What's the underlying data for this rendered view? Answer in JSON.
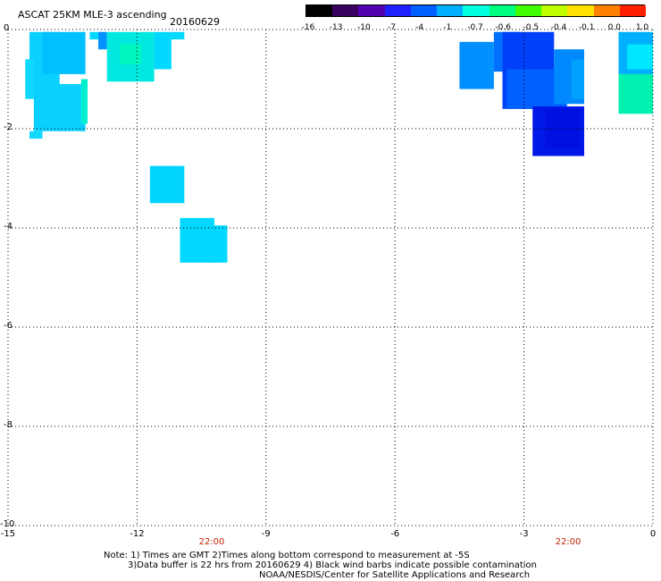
{
  "header": {
    "title": "ASCAT 25KM MLE-3 ascending",
    "date": "20160629"
  },
  "colorbar": {
    "labels": [
      "-16",
      "-13",
      "-10",
      "-7",
      "-4",
      "-1",
      "-0.7",
      "-0.6",
      "-0.5",
      "-0.4",
      "-0.1",
      "0.0",
      "1.0"
    ],
    "colors": [
      "#000000",
      "#3a0060",
      "#5000b0",
      "#2020ff",
      "#0060ff",
      "#00b0ff",
      "#00ffe0",
      "#00ff80",
      "#40ff00",
      "#c0ff00",
      "#ffe000",
      "#ff8000",
      "#ff2000"
    ]
  },
  "axes": {
    "x_ticks": [
      "-15",
      "-12",
      "-9",
      "-6",
      "-3",
      "0"
    ],
    "y_ticks": [
      "0",
      "-2",
      "-4",
      "-6",
      "-8",
      "-10"
    ],
    "time_labels": [
      "22:00",
      "22:00"
    ]
  },
  "map_data": {
    "lon_range": [
      -15,
      0
    ],
    "lat_range": [
      -10,
      0
    ],
    "gridlines": true,
    "patches": [
      {
        "lon": [
          -14.5,
          -13.8
        ],
        "lat": [
          -1.3,
          -0.05
        ],
        "color": "#0ad0ff"
      },
      {
        "lon": [
          -14.6,
          -14.4
        ],
        "lat": [
          -0.6,
          -1.4
        ],
        "color": "#11d8ff"
      },
      {
        "lon": [
          -14.4,
          -13.2
        ],
        "lat": [
          -1.1,
          -2.05
        ],
        "color": "#0ad0ff"
      },
      {
        "lon": [
          -14.5,
          -14.2
        ],
        "lat": [
          -2.05,
          -2.2
        ],
        "color": "#11d8ff"
      },
      {
        "lon": [
          -14.2,
          -13.2
        ],
        "lat": [
          -0.05,
          -0.9
        ],
        "color": "#00c0ff"
      },
      {
        "lon": [
          -13.3,
          -13.15
        ],
        "lat": [
          -1.0,
          -1.9
        ],
        "color": "#00f0d0"
      },
      {
        "lon": [
          -13.1,
          -12.9
        ],
        "lat": [
          -0.05,
          -0.2
        ],
        "color": "#00d8ff"
      },
      {
        "lon": [
          -12.9,
          -12.7
        ],
        "lat": [
          -0.05,
          -0.4
        ],
        "color": "#0090ff"
      },
      {
        "lon": [
          -12.7,
          -11.6
        ],
        "lat": [
          -0.05,
          -1.05
        ],
        "color": "#00e8e0"
      },
      {
        "lon": [
          -12.4,
          -11.9
        ],
        "lat": [
          -0.3,
          -0.7
        ],
        "color": "#00f8c0"
      },
      {
        "lon": [
          -11.6,
          -11.2
        ],
        "lat": [
          -0.05,
          -0.8
        ],
        "color": "#00d8ff"
      },
      {
        "lon": [
          -11.2,
          -10.9
        ],
        "lat": [
          -0.05,
          -0.2
        ],
        "color": "#00d8ff"
      },
      {
        "lon": [
          -11.7,
          -10.9
        ],
        "lat": [
          -2.75,
          -3.5
        ],
        "color": "#00d4ff"
      },
      {
        "lon": [
          -11.0,
          -10.2
        ],
        "lat": [
          -3.8,
          -4.7
        ],
        "color": "#00d8ff"
      },
      {
        "lon": [
          -10.3,
          -9.9
        ],
        "lat": [
          -3.95,
          -4.7
        ],
        "color": "#00d8ff"
      },
      {
        "lon": [
          -4.5,
          -3.7
        ],
        "lat": [
          -0.25,
          -1.2
        ],
        "color": "#0090ff"
      },
      {
        "lon": [
          -3.7,
          -3.1
        ],
        "lat": [
          -0.05,
          -0.85
        ],
        "color": "#0070ff"
      },
      {
        "lon": [
          -3.5,
          -2.3
        ],
        "lat": [
          -0.05,
          -1.6
        ],
        "color": "#0040f8"
      },
      {
        "lon": [
          -3.4,
          -2.0
        ],
        "lat": [
          -0.8,
          -1.6
        ],
        "color": "#0060ff"
      },
      {
        "lon": [
          -2.3,
          -1.6
        ],
        "lat": [
          -0.4,
          -1.5
        ],
        "color": "#0088ff"
      },
      {
        "lon": [
          -1.9,
          -1.6
        ],
        "lat": [
          -0.6,
          -1.4
        ],
        "color": "#00a0ff"
      },
      {
        "lon": [
          -2.8,
          -1.6
        ],
        "lat": [
          -1.55,
          -2.55
        ],
        "color": "#0018e8"
      },
      {
        "lon": [
          -2.5,
          -1.7
        ],
        "lat": [
          -1.6,
          -2.4
        ],
        "color": "#0010e0"
      },
      {
        "lon": [
          -0.8,
          0
        ],
        "lat": [
          -0.05,
          -0.9
        ],
        "color": "#00b0ff"
      },
      {
        "lon": [
          -0.6,
          0
        ],
        "lat": [
          -0.3,
          -0.8
        ],
        "color": "#00e8ff"
      },
      {
        "lon": [
          -0.8,
          0
        ],
        "lat": [
          -0.9,
          -1.7
        ],
        "color": "#00f0b0"
      }
    ]
  },
  "notes": [
    "Note: 1) Times are GMT 2)Times along bottom correspond to measurement at -5S",
    "3)Data buffer is 22 hrs from 20160629 4) Black wind barbs indicate possible contamination",
    "NOAA/NESDIS/Center for Satellite Applications and Research"
  ]
}
